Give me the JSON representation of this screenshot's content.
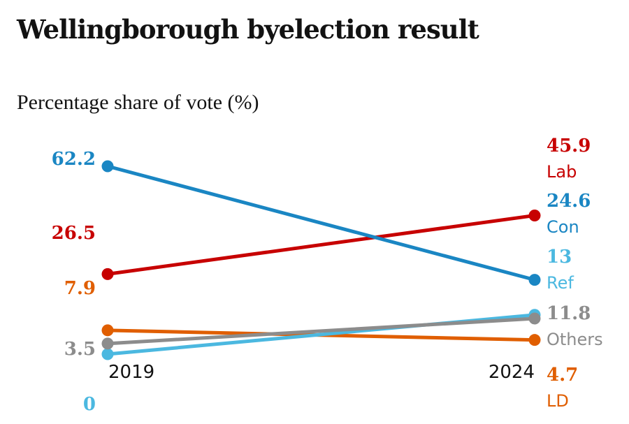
{
  "chart_data": {
    "type": "line",
    "title": "Wellingborough byelection result",
    "subtitle": "Percentage share of vote (%)",
    "x": [
      "2019",
      "2024"
    ],
    "series": [
      {
        "name": "Con",
        "values": [
          62.2,
          24.6
        ],
        "color": "#1a86c3",
        "label_2019": "62.2",
        "label_2024": "24.6"
      },
      {
        "name": "Lab",
        "values": [
          26.5,
          45.9
        ],
        "color": "#c70000",
        "label_2019": "26.5",
        "label_2024": "45.9"
      },
      {
        "name": "LD",
        "values": [
          7.9,
          4.7
        ],
        "color": "#e05e00",
        "label_2019": "7.9",
        "label_2024": "4.7"
      },
      {
        "name": "Others",
        "values": [
          3.5,
          11.8
        ],
        "color": "#8c8c8c",
        "label_2019": "3.5",
        "label_2024": "11.8"
      },
      {
        "name": "Ref",
        "values": [
          0,
          13
        ],
        "color": "#4bb8e0",
        "label_2019": "0",
        "label_2024": "13"
      }
    ],
    "ylim": [
      0,
      62.2
    ],
    "xlabel": "",
    "ylabel": ""
  }
}
